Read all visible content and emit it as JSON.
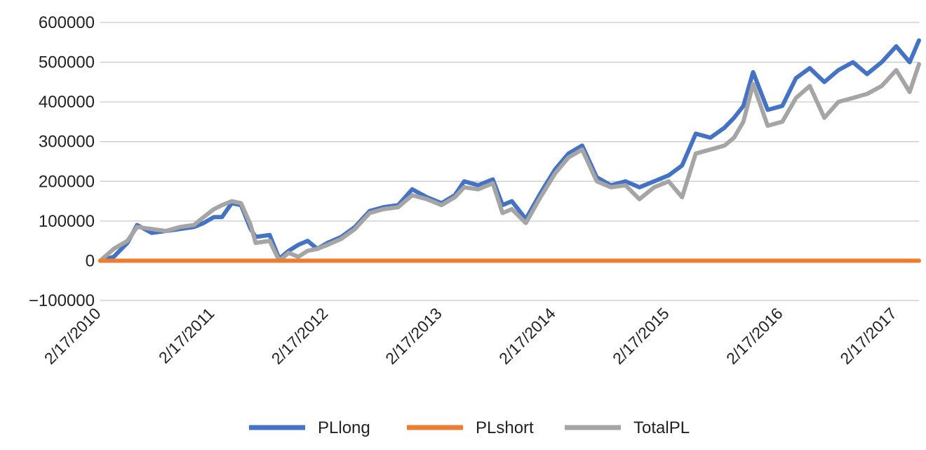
{
  "chart_data": {
    "type": "line",
    "title": "",
    "xlabel": "",
    "ylabel": "",
    "ylim": [
      -100000,
      600000
    ],
    "yticks": [
      -100000,
      0,
      100000,
      200000,
      300000,
      400000,
      500000,
      600000
    ],
    "ytick_labels": [
      "−100000",
      "0",
      "100000",
      "200000",
      "300000",
      "400000",
      "500000",
      "600000"
    ],
    "xlim": [
      "2/17/2010",
      "5/1/2017"
    ],
    "xtick_labels": [
      "2/17/2010",
      "2/17/2011",
      "2/17/2012",
      "2/17/2013",
      "2/17/2014",
      "2/17/2015",
      "2/17/2016",
      "2/17/2017"
    ],
    "grid": "horizontal",
    "legend": "bottom",
    "series": [
      {
        "name": "PLlong",
        "color": "#4472C4",
        "x": [
          "2/17/2010",
          "4/1/2010",
          "5/15/2010",
          "6/15/2010",
          "8/1/2010",
          "9/15/2010",
          "11/1/2010",
          "12/15/2010",
          "1/15/2011",
          "2/17/2011",
          "3/15/2011",
          "4/15/2011",
          "5/15/2011",
          "6/15/2011",
          "7/1/2011",
          "8/15/2011",
          "9/15/2011",
          "10/15/2011",
          "11/15/2011",
          "12/15/2011",
          "1/15/2012",
          "2/17/2012",
          "4/1/2012",
          "5/15/2012",
          "7/1/2012",
          "8/15/2012",
          "10/1/2012",
          "11/15/2012",
          "1/1/2013",
          "2/17/2013",
          "4/1/2013",
          "5/1/2013",
          "6/15/2013",
          "8/1/2013",
          "9/1/2013",
          "10/1/2013",
          "11/15/2013",
          "1/1/2014",
          "2/17/2014",
          "4/1/2014",
          "5/15/2014",
          "7/1/2014",
          "8/15/2014",
          "10/1/2014",
          "11/15/2014",
          "1/1/2015",
          "2/17/2015",
          "4/1/2015",
          "5/15/2015",
          "7/1/2015",
          "8/15/2015",
          "9/15/2015",
          "10/15/2015",
          "11/15/2015",
          "1/1/2016",
          "2/17/2016",
          "4/1/2016",
          "5/15/2016",
          "7/1/2016",
          "8/15/2016",
          "10/1/2016",
          "11/15/2016",
          "1/1/2017",
          "2/17/2017",
          "4/1/2017",
          "5/1/2017"
        ],
        "y": [
          0,
          10000,
          45000,
          90000,
          70000,
          75000,
          80000,
          85000,
          95000,
          110000,
          110000,
          145000,
          140000,
          80000,
          60000,
          65000,
          5000,
          25000,
          40000,
          50000,
          30000,
          45000,
          60000,
          85000,
          125000,
          135000,
          140000,
          180000,
          160000,
          145000,
          165000,
          200000,
          190000,
          205000,
          140000,
          150000,
          105000,
          170000,
          230000,
          270000,
          290000,
          210000,
          190000,
          200000,
          185000,
          200000,
          215000,
          240000,
          320000,
          310000,
          335000,
          360000,
          390000,
          475000,
          380000,
          390000,
          460000,
          485000,
          450000,
          480000,
          500000,
          470000,
          500000,
          540000,
          500000,
          555000
        ]
      },
      {
        "name": "PLshort",
        "color": "#ED7D31",
        "x": [
          "2/17/2010",
          "5/1/2017"
        ],
        "y": [
          0,
          0
        ]
      },
      {
        "name": "TotalPL",
        "color": "#A5A5A5",
        "x": [
          "2/17/2010",
          "4/1/2010",
          "5/15/2010",
          "6/15/2010",
          "8/1/2010",
          "9/15/2010",
          "11/1/2010",
          "12/15/2010",
          "1/15/2011",
          "2/17/2011",
          "3/15/2011",
          "4/15/2011",
          "5/15/2011",
          "6/15/2011",
          "7/1/2011",
          "8/15/2011",
          "9/15/2011",
          "10/15/2011",
          "11/15/2011",
          "12/15/2011",
          "1/15/2012",
          "2/17/2012",
          "4/1/2012",
          "5/15/2012",
          "7/1/2012",
          "8/15/2012",
          "10/1/2012",
          "11/15/2012",
          "1/1/2013",
          "2/17/2013",
          "4/1/2013",
          "5/1/2013",
          "6/15/2013",
          "8/1/2013",
          "9/1/2013",
          "10/1/2013",
          "11/15/2013",
          "1/1/2014",
          "2/17/2014",
          "4/1/2014",
          "5/15/2014",
          "7/1/2014",
          "8/15/2014",
          "10/1/2014",
          "11/15/2014",
          "1/1/2015",
          "2/17/2015",
          "4/1/2015",
          "5/15/2015",
          "7/1/2015",
          "8/15/2015",
          "9/15/2015",
          "10/15/2015",
          "11/15/2015",
          "1/1/2016",
          "2/17/2016",
          "4/1/2016",
          "5/15/2016",
          "7/1/2016",
          "8/15/2016",
          "10/1/2016",
          "11/15/2016",
          "1/1/2017",
          "2/17/2017",
          "4/1/2017",
          "5/1/2017"
        ],
        "y": [
          0,
          30000,
          50000,
          85000,
          80000,
          75000,
          85000,
          90000,
          110000,
          130000,
          140000,
          150000,
          145000,
          90000,
          45000,
          50000,
          0,
          20000,
          10000,
          25000,
          30000,
          40000,
          55000,
          80000,
          120000,
          130000,
          135000,
          165000,
          155000,
          140000,
          160000,
          185000,
          180000,
          195000,
          120000,
          130000,
          95000,
          160000,
          220000,
          260000,
          280000,
          200000,
          185000,
          190000,
          155000,
          185000,
          200000,
          160000,
          270000,
          280000,
          290000,
          310000,
          350000,
          445000,
          340000,
          350000,
          410000,
          440000,
          360000,
          400000,
          410000,
          420000,
          440000,
          480000,
          425000,
          495000
        ]
      }
    ]
  }
}
